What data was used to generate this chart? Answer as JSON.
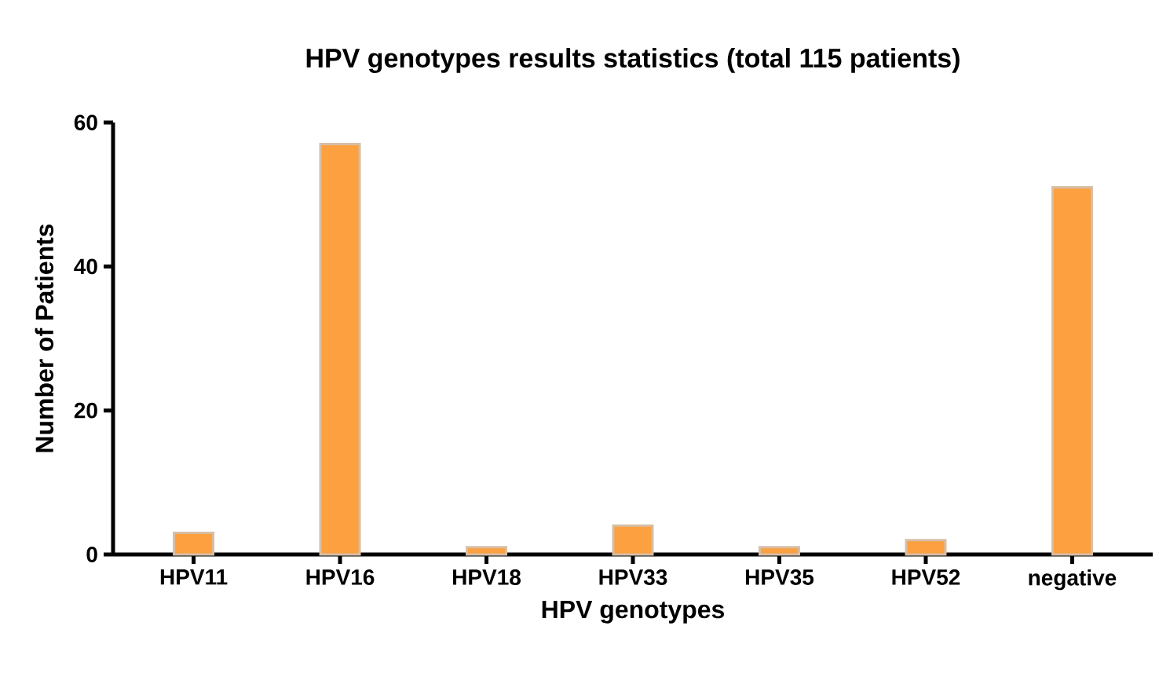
{
  "chart_data": {
    "type": "bar",
    "title": "HPV genotypes results statistics (total 115 patients)",
    "xlabel": "HPV genotypes",
    "ylabel": "Number of Patients",
    "categories": [
      "HPV11",
      "HPV16",
      "HPV18",
      "HPV33",
      "HPV35",
      "HPV52",
      "negative"
    ],
    "values": [
      3,
      57,
      1,
      4,
      1,
      2,
      51
    ],
    "color": "#fca040",
    "ylim": [
      0,
      60
    ],
    "yticks": [
      0,
      20,
      40,
      60
    ]
  }
}
